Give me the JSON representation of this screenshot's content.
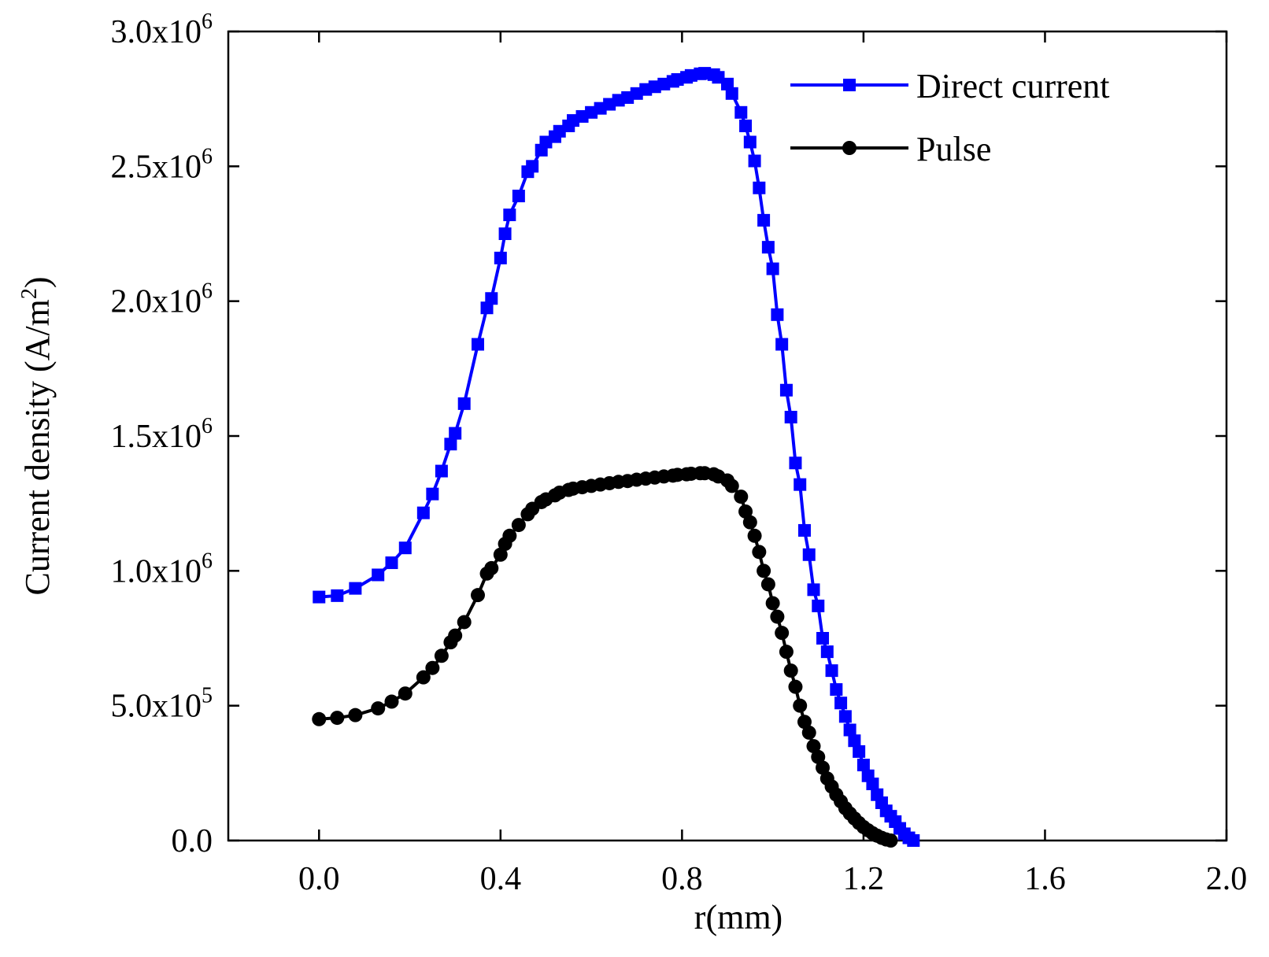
{
  "chart_data": {
    "type": "line",
    "title": "",
    "xlabel": "r(mm)",
    "ylabel": {
      "main": "Current density (A/m",
      "sup": "2",
      "tail": ")"
    },
    "xlim": [
      -0.2,
      2.0
    ],
    "ylim": [
      0,
      3000000
    ],
    "x_ticks": [
      {
        "value": 0.0,
        "label": "0.0"
      },
      {
        "value": 0.4,
        "label": "0.4"
      },
      {
        "value": 0.8,
        "label": "0.8"
      },
      {
        "value": 1.2,
        "label": "1.2"
      },
      {
        "value": 1.6,
        "label": "1.6"
      },
      {
        "value": 2.0,
        "label": "2.0"
      }
    ],
    "y_ticks": [
      {
        "value": 0,
        "mantissa": "0.0",
        "exp": ""
      },
      {
        "value": 500000,
        "mantissa": "5.0x10",
        "exp": "5"
      },
      {
        "value": 1000000,
        "mantissa": "1.0x10",
        "exp": "6"
      },
      {
        "value": 1500000,
        "mantissa": "1.5x10",
        "exp": "6"
      },
      {
        "value": 2000000,
        "mantissa": "2.0x10",
        "exp": "6"
      },
      {
        "value": 2500000,
        "mantissa": "2.5x10",
        "exp": "6"
      },
      {
        "value": 3000000,
        "mantissa": "3.0x10",
        "exp": "6"
      }
    ],
    "legend_position": "top-right",
    "series": [
      {
        "name": "Direct current",
        "color": "#0000ff",
        "marker": "square",
        "points": [
          [
            0.0,
            903000
          ],
          [
            0.04,
            908000
          ],
          [
            0.08,
            935000
          ],
          [
            0.13,
            985000
          ],
          [
            0.16,
            1030000
          ],
          [
            0.19,
            1085000
          ],
          [
            0.23,
            1215000
          ],
          [
            0.25,
            1285000
          ],
          [
            0.27,
            1370000
          ],
          [
            0.29,
            1470000
          ],
          [
            0.3,
            1510000
          ],
          [
            0.32,
            1620000
          ],
          [
            0.35,
            1840000
          ],
          [
            0.37,
            1975000
          ],
          [
            0.38,
            2010000
          ],
          [
            0.4,
            2160000
          ],
          [
            0.41,
            2250000
          ],
          [
            0.42,
            2320000
          ],
          [
            0.44,
            2390000
          ],
          [
            0.46,
            2480000
          ],
          [
            0.47,
            2500000
          ],
          [
            0.49,
            2560000
          ],
          [
            0.5,
            2590000
          ],
          [
            0.52,
            2610000
          ],
          [
            0.53,
            2630000
          ],
          [
            0.55,
            2650000
          ],
          [
            0.56,
            2670000
          ],
          [
            0.58,
            2685000
          ],
          [
            0.6,
            2700000
          ],
          [
            0.62,
            2715000
          ],
          [
            0.64,
            2730000
          ],
          [
            0.66,
            2745000
          ],
          [
            0.68,
            2755000
          ],
          [
            0.7,
            2770000
          ],
          [
            0.72,
            2785000
          ],
          [
            0.74,
            2795000
          ],
          [
            0.76,
            2805000
          ],
          [
            0.78,
            2815000
          ],
          [
            0.79,
            2822000
          ],
          [
            0.81,
            2830000
          ],
          [
            0.82,
            2837000
          ],
          [
            0.84,
            2843000
          ],
          [
            0.85,
            2845000
          ],
          [
            0.87,
            2840000
          ],
          [
            0.88,
            2830000
          ],
          [
            0.9,
            2805000
          ],
          [
            0.91,
            2770000
          ],
          [
            0.93,
            2700000
          ],
          [
            0.94,
            2650000
          ],
          [
            0.95,
            2590000
          ],
          [
            0.96,
            2520000
          ],
          [
            0.97,
            2420000
          ],
          [
            0.98,
            2300000
          ],
          [
            0.99,
            2200000
          ],
          [
            1.0,
            2120000
          ],
          [
            1.01,
            1950000
          ],
          [
            1.02,
            1840000
          ],
          [
            1.03,
            1670000
          ],
          [
            1.04,
            1570000
          ],
          [
            1.05,
            1400000
          ],
          [
            1.06,
            1320000
          ],
          [
            1.07,
            1150000
          ],
          [
            1.08,
            1060000
          ],
          [
            1.09,
            930000
          ],
          [
            1.1,
            870000
          ],
          [
            1.11,
            750000
          ],
          [
            1.12,
            700000
          ],
          [
            1.13,
            630000
          ],
          [
            1.14,
            560000
          ],
          [
            1.15,
            510000
          ],
          [
            1.16,
            460000
          ],
          [
            1.17,
            410000
          ],
          [
            1.18,
            370000
          ],
          [
            1.19,
            330000
          ],
          [
            1.2,
            280000
          ],
          [
            1.21,
            240000
          ],
          [
            1.22,
            210000
          ],
          [
            1.23,
            170000
          ],
          [
            1.24,
            140000
          ],
          [
            1.25,
            110000
          ],
          [
            1.26,
            90000
          ],
          [
            1.27,
            70000
          ],
          [
            1.28,
            45000
          ],
          [
            1.29,
            25000
          ],
          [
            1.3,
            10000
          ],
          [
            1.31,
            0
          ]
        ]
      },
      {
        "name": "Pulse",
        "color": "#000000",
        "marker": "circle",
        "points": [
          [
            0.0,
            450000
          ],
          [
            0.04,
            455000
          ],
          [
            0.08,
            465000
          ],
          [
            0.13,
            490000
          ],
          [
            0.16,
            515000
          ],
          [
            0.19,
            545000
          ],
          [
            0.23,
            605000
          ],
          [
            0.25,
            640000
          ],
          [
            0.27,
            685000
          ],
          [
            0.29,
            735000
          ],
          [
            0.3,
            760000
          ],
          [
            0.32,
            810000
          ],
          [
            0.35,
            910000
          ],
          [
            0.37,
            990000
          ],
          [
            0.38,
            1010000
          ],
          [
            0.4,
            1060000
          ],
          [
            0.41,
            1100000
          ],
          [
            0.42,
            1130000
          ],
          [
            0.44,
            1170000
          ],
          [
            0.46,
            1210000
          ],
          [
            0.47,
            1230000
          ],
          [
            0.49,
            1255000
          ],
          [
            0.5,
            1265000
          ],
          [
            0.52,
            1280000
          ],
          [
            0.53,
            1290000
          ],
          [
            0.55,
            1300000
          ],
          [
            0.56,
            1305000
          ],
          [
            0.58,
            1310000
          ],
          [
            0.6,
            1315000
          ],
          [
            0.62,
            1320000
          ],
          [
            0.64,
            1325000
          ],
          [
            0.66,
            1330000
          ],
          [
            0.68,
            1333000
          ],
          [
            0.7,
            1338000
          ],
          [
            0.72,
            1342000
          ],
          [
            0.74,
            1346000
          ],
          [
            0.76,
            1350000
          ],
          [
            0.78,
            1353000
          ],
          [
            0.79,
            1356000
          ],
          [
            0.81,
            1358000
          ],
          [
            0.82,
            1360000
          ],
          [
            0.84,
            1362000
          ],
          [
            0.85,
            1362000
          ],
          [
            0.87,
            1358000
          ],
          [
            0.88,
            1350000
          ],
          [
            0.9,
            1335000
          ],
          [
            0.91,
            1315000
          ],
          [
            0.93,
            1275000
          ],
          [
            0.94,
            1220000
          ],
          [
            0.95,
            1180000
          ],
          [
            0.96,
            1130000
          ],
          [
            0.97,
            1070000
          ],
          [
            0.98,
            1000000
          ],
          [
            0.99,
            950000
          ],
          [
            1.0,
            880000
          ],
          [
            1.01,
            830000
          ],
          [
            1.02,
            770000
          ],
          [
            1.03,
            700000
          ],
          [
            1.04,
            630000
          ],
          [
            1.05,
            570000
          ],
          [
            1.06,
            500000
          ],
          [
            1.07,
            440000
          ],
          [
            1.08,
            400000
          ],
          [
            1.09,
            350000
          ],
          [
            1.1,
            310000
          ],
          [
            1.11,
            270000
          ],
          [
            1.12,
            230000
          ],
          [
            1.13,
            200000
          ],
          [
            1.14,
            170000
          ],
          [
            1.15,
            145000
          ],
          [
            1.16,
            120000
          ],
          [
            1.17,
            100000
          ],
          [
            1.18,
            82000
          ],
          [
            1.19,
            65000
          ],
          [
            1.2,
            50000
          ],
          [
            1.21,
            38000
          ],
          [
            1.22,
            27000
          ],
          [
            1.23,
            18000
          ],
          [
            1.24,
            10000
          ],
          [
            1.25,
            4000
          ],
          [
            1.26,
            0
          ]
        ]
      }
    ]
  }
}
